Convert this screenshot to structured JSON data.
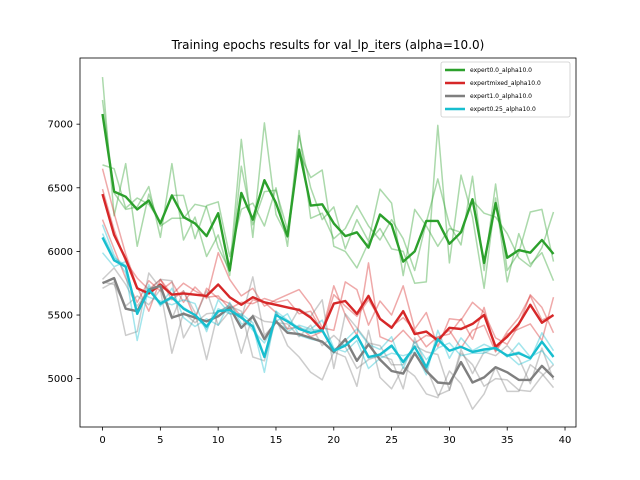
{
  "chart_data": {
    "type": "line",
    "title": "Training epochs results for val_lp_iters (alpha=10.0)",
    "xlabel": "",
    "ylabel": "",
    "xlim": [
      -1.95,
      40.95
    ],
    "ylim": [
      4620,
      7520
    ],
    "x_ticks": [
      0,
      5,
      10,
      15,
      20,
      25,
      30,
      35,
      40
    ],
    "y_ticks": [
      5000,
      5500,
      6000,
      6500,
      7000
    ],
    "grid": false,
    "legend_position": "top-right",
    "x": [
      0,
      1,
      2,
      3,
      4,
      5,
      6,
      7,
      8,
      9,
      10,
      11,
      12,
      13,
      14,
      15,
      16,
      17,
      18,
      19,
      20,
      21,
      22,
      23,
      24,
      25,
      26,
      27,
      28,
      29,
      30,
      31,
      32,
      33,
      34,
      35,
      36,
      37,
      38,
      39
    ],
    "series": [
      {
        "name": "expert0.0_alpha10.0",
        "color": "#2ca02c",
        "mean": [
          7080,
          6470,
          6430,
          6330,
          6400,
          6220,
          6440,
          6270,
          6220,
          6120,
          6300,
          5850,
          6460,
          6250,
          6560,
          6380,
          6120,
          6800,
          6360,
          6370,
          6220,
          6120,
          6150,
          6030,
          6290,
          6210,
          5920,
          6000,
          6240,
          6240,
          6060,
          6150,
          6410,
          5910,
          6380,
          5950,
          6010,
          5990,
          6090,
          5980
        ],
        "runs": [
          [
            7370,
            6280,
            6690,
            6040,
            6450,
            6200,
            6260,
            6260,
            6370,
            6350,
            6030,
            5850,
            6880,
            6110,
            7010,
            6290,
            6110,
            6950,
            6260,
            6300,
            6100,
            6180,
            6360,
            6200,
            6090,
            6250,
            6100,
            5850,
            6230,
            6570,
            6210,
            6050,
            6590,
            5850,
            6530,
            5850,
            5990,
            6310,
            6330,
            5920
          ],
          [
            7190,
            6460,
            6330,
            6350,
            6510,
            6110,
            6690,
            6090,
            6270,
            5960,
            6130,
            5810,
            6670,
            6210,
            6470,
            6480,
            6170,
            6780,
            6580,
            6640,
            6040,
            6000,
            5870,
            6070,
            6180,
            6020,
            6000,
            5750,
            5760,
            6990,
            5910,
            6600,
            6270,
            5710,
            6420,
            5760,
            6140,
            5900,
            5990,
            5770
          ],
          [
            6680,
            6650,
            6340,
            6420,
            6370,
            6230,
            6440,
            6440,
            6100,
            6360,
            6390,
            5960,
            6330,
            6380,
            6200,
            6500,
            6040,
            6910,
            6500,
            6250,
            6350,
            6020,
            6250,
            6080,
            6490,
            6380,
            5810,
            6330,
            6200,
            6040,
            6180,
            6150,
            6400,
            6300,
            6270,
            6140,
            5950,
            5880,
            6030,
            6310
          ]
        ]
      },
      {
        "name": "expertmixed_alpha10.0",
        "color": "#d62728",
        "mean": [
          6450,
          6130,
          5940,
          5710,
          5670,
          5740,
          5660,
          5670,
          5660,
          5650,
          5740,
          5640,
          5580,
          5640,
          5600,
          5580,
          5560,
          5540,
          5480,
          5380,
          5590,
          5610,
          5510,
          5650,
          5470,
          5400,
          5530,
          5350,
          5370,
          5300,
          5400,
          5390,
          5430,
          5500,
          5250,
          5330,
          5430,
          5580,
          5440,
          5500
        ],
        "runs": [
          [
            6650,
            6300,
            5980,
            5720,
            5530,
            5780,
            5620,
            5690,
            5470,
            5710,
            5630,
            5590,
            5490,
            5620,
            5600,
            5520,
            5390,
            5410,
            5330,
            5370,
            5730,
            5500,
            5340,
            5910,
            5330,
            5290,
            5380,
            5280,
            5340,
            5320,
            5380,
            5240,
            5380,
            5420,
            5210,
            5350,
            5390,
            5430,
            5300,
            5640
          ],
          [
            6250,
            6020,
            5790,
            5600,
            5770,
            5690,
            5760,
            5600,
            5720,
            5630,
            5990,
            5780,
            5650,
            5710,
            5570,
            5620,
            5660,
            5700,
            5580,
            5400,
            5380,
            5760,
            5700,
            5420,
            5610,
            5500,
            5730,
            5390,
            5520,
            5250,
            5470,
            5460,
            5600,
            5520,
            5320,
            5270,
            5420,
            5660,
            5560,
            5360
          ],
          [
            6490,
            6170,
            5920,
            5790,
            5700,
            5780,
            5660,
            5750,
            5690,
            5640,
            5650,
            5550,
            5600,
            5590,
            5630,
            5600,
            5620,
            5510,
            5530,
            5370,
            5660,
            5570,
            5490,
            5620,
            5470,
            5410,
            5480,
            5380,
            5250,
            5330,
            5350,
            5470,
            5310,
            5560,
            5220,
            5370,
            5480,
            5650,
            5460,
            5500
          ]
        ]
      },
      {
        "name": "expert1.0_alpha10.0",
        "color": "#7f7f7f",
        "mean": [
          5750,
          5790,
          5550,
          5530,
          5700,
          5730,
          5480,
          5510,
          5480,
          5450,
          5490,
          5560,
          5400,
          5490,
          5310,
          5450,
          5360,
          5350,
          5320,
          5290,
          5210,
          5310,
          5140,
          5270,
          5150,
          5060,
          5040,
          5200,
          5060,
          4970,
          4960,
          5130,
          4970,
          5010,
          5090,
          5050,
          4990,
          4990,
          5100,
          5010
        ],
        "runs": [
          [
            5710,
            5760,
            5340,
            5370,
            5830,
            5710,
            5470,
            5690,
            5520,
            5150,
            5530,
            5570,
            5530,
            5170,
            5140,
            5470,
            5260,
            5170,
            5050,
            4990,
            5210,
            5170,
            4940,
            5380,
            5010,
            4920,
            5090,
            5020,
            4880,
            4850,
            5060,
            4960,
            4760,
            4880,
            5090,
            4900,
            4900,
            5110,
            5040,
            4930
          ],
          [
            5780,
            5870,
            5740,
            5570,
            5690,
            5780,
            5770,
            5320,
            5480,
            5690,
            5420,
            5530,
            5200,
            5500,
            5450,
            5440,
            5430,
            5330,
            5420,
            5260,
            5340,
            5250,
            5080,
            5150,
            5180,
            5150,
            4920,
            5320,
            5090,
            4870,
            4910,
            5200,
            5110,
            4940,
            5000,
            4990,
            4910,
            4900,
            5020,
            5110
          ],
          [
            5760,
            5740,
            5570,
            5650,
            5580,
            5700,
            5200,
            5520,
            5440,
            5510,
            5520,
            5580,
            5470,
            5800,
            5340,
            5440,
            5390,
            5550,
            5490,
            5620,
            5080,
            5510,
            5400,
            5280,
            5260,
            5110,
            5110,
            5260,
            5210,
            5190,
            4910,
            5230,
            5040,
            5210,
            5180,
            5260,
            5160,
            4960,
            5240,
            4990
          ]
        ]
      },
      {
        "name": "expert0.25_alpha10.0",
        "color": "#17becf",
        "mean": [
          6110,
          5930,
          5880,
          5510,
          5700,
          5590,
          5640,
          5550,
          5500,
          5410,
          5530,
          5540,
          5480,
          5410,
          5170,
          5500,
          5450,
          5390,
          5360,
          5380,
          5220,
          5260,
          5340,
          5170,
          5190,
          5260,
          5130,
          5250,
          5090,
          5310,
          5220,
          5250,
          5210,
          5230,
          5240,
          5180,
          5200,
          5160,
          5290,
          5170
        ],
        "runs": [
          [
            6210,
            5970,
            5830,
            5300,
            5720,
            5570,
            5710,
            5480,
            5410,
            5470,
            5420,
            5600,
            5430,
            5420,
            5050,
            5530,
            5370,
            5420,
            5390,
            5460,
            5240,
            5210,
            5300,
            5080,
            5160,
            5200,
            5180,
            5210,
            5030,
            5380,
            5160,
            5320,
            5220,
            5270,
            5230,
            5190,
            5110,
            5150,
            5360,
            5220
          ],
          [
            5990,
            5880,
            5920,
            5720,
            5640,
            5610,
            5580,
            5620,
            5590,
            5370,
            5620,
            5510,
            5500,
            5380,
            5280,
            5450,
            5510,
            5340,
            5310,
            5290,
            5200,
            5300,
            5390,
            5270,
            5230,
            5330,
            5080,
            5290,
            5150,
            5240,
            5280,
            5180,
            5200,
            5200,
            5250,
            5170,
            5280,
            5170,
            5220,
            5110
          ],
          [
            6140,
            5950,
            5890,
            5520,
            5740,
            5580,
            5630,
            5560,
            5500,
            5390,
            5550,
            5510,
            5510,
            5440,
            5180,
            5530,
            5460,
            5400,
            5380,
            5390,
            5230,
            5270,
            5330,
            5160,
            5180,
            5250,
            5140,
            5250,
            5080,
            5300,
            5220,
            5250,
            5210,
            5220,
            5240,
            5180,
            5210,
            5160,
            5290,
            5180
          ]
        ]
      }
    ]
  }
}
